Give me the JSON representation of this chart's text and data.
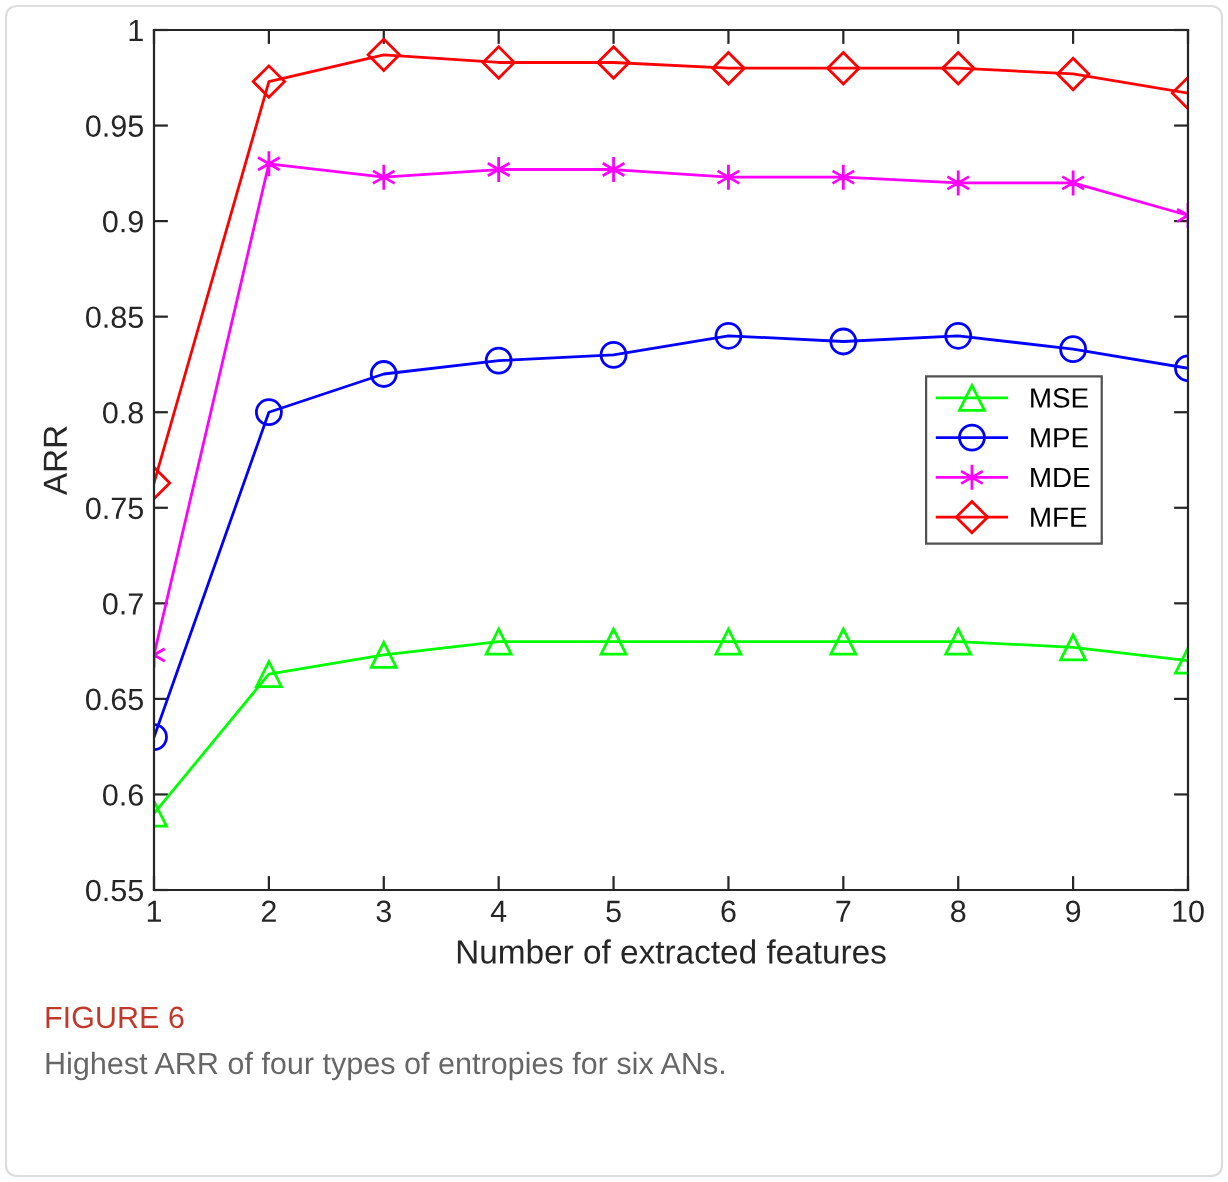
{
  "chart_data": {
    "type": "line",
    "xlabel": "Number of extracted features",
    "ylabel": "ARR",
    "x": [
      1,
      2,
      3,
      4,
      5,
      6,
      7,
      8,
      9,
      10
    ],
    "series": [
      {
        "name": "MSE",
        "color": "#00ff00",
        "marker": "triangle",
        "values": [
          0.59,
          0.663,
          0.673,
          0.68,
          0.68,
          0.68,
          0.68,
          0.68,
          0.677,
          0.67
        ]
      },
      {
        "name": "MPE",
        "color": "#0000ff",
        "marker": "circle",
        "values": [
          0.63,
          0.8,
          0.82,
          0.827,
          0.83,
          0.84,
          0.837,
          0.84,
          0.833,
          0.823
        ]
      },
      {
        "name": "MDE",
        "color": "#ff00ff",
        "marker": "cross",
        "values": [
          0.673,
          0.93,
          0.923,
          0.927,
          0.927,
          0.923,
          0.923,
          0.92,
          0.92,
          0.903
        ]
      },
      {
        "name": "MFE",
        "color": "#ff0000",
        "marker": "diamond",
        "values": [
          0.763,
          0.973,
          0.987,
          0.983,
          0.983,
          0.98,
          0.98,
          0.98,
          0.977,
          0.967
        ]
      }
    ],
    "xlim": [
      1,
      10
    ],
    "xticks": [
      1,
      2,
      3,
      4,
      5,
      6,
      7,
      8,
      9,
      10
    ],
    "ylim": [
      0.55,
      1
    ],
    "yticks": [
      0.55,
      0.6,
      0.65,
      0.7,
      0.75,
      0.8,
      0.85,
      0.9,
      0.95,
      1
    ],
    "grid": false,
    "legend": "right",
    "line_style": "solid",
    "annotations": [
      "FIGURE 6",
      "Highest ARR of four types of entropies for six ANs."
    ]
  }
}
